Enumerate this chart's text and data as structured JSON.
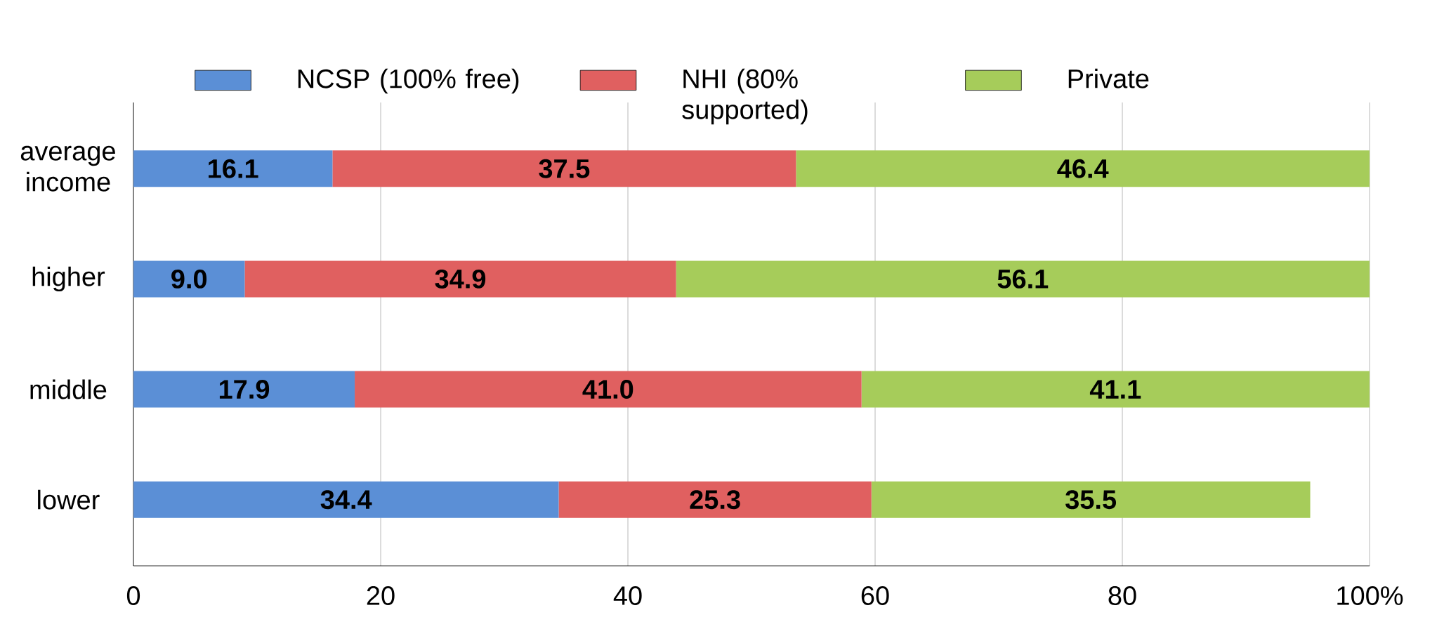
{
  "chart_data": {
    "type": "bar",
    "orientation": "horizontal",
    "stacked": true,
    "categories": [
      "average income",
      "higher",
      "middle",
      "lower"
    ],
    "series": [
      {
        "name": "NCSP (100% free)",
        "color": "#5b8fd6",
        "values": [
          16.1,
          9.0,
          17.9,
          34.4
        ],
        "value_labels": [
          "16.1",
          "9.0",
          "17.9",
          "34.4"
        ]
      },
      {
        "name": "NHI (80% supported)",
        "color": "#e06060",
        "values": [
          37.5,
          34.9,
          41.0,
          25.3
        ],
        "value_labels": [
          "37.5",
          "34.9",
          "41.0",
          "25.3"
        ]
      },
      {
        "name": "Private",
        "color": "#a6cc5a",
        "values": [
          46.4,
          56.1,
          41.1,
          35.5
        ],
        "value_labels": [
          "46.4",
          "56.1",
          "41.1",
          "35.5"
        ]
      }
    ],
    "xlim": [
      0,
      100
    ],
    "xticks": [
      0,
      20,
      40,
      60,
      80,
      {
        "value": 100,
        "label": "100%"
      }
    ],
    "grid": "x",
    "legend": "top"
  }
}
